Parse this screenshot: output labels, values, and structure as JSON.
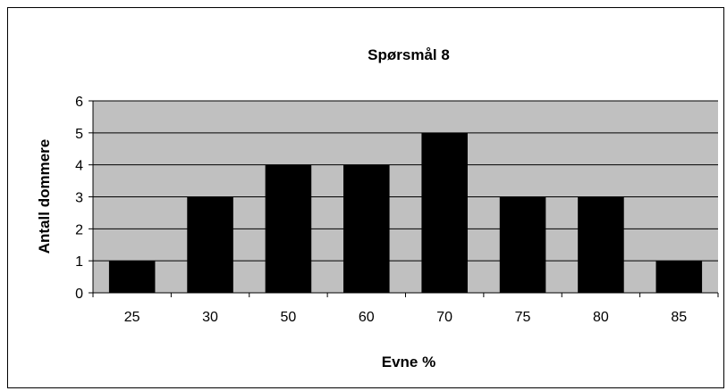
{
  "chart_data": {
    "type": "bar",
    "title": "Spørsmål 8",
    "xlabel": "Evne %",
    "ylabel": "Antall dommere",
    "categories": [
      "25",
      "30",
      "50",
      "60",
      "70",
      "75",
      "80",
      "85"
    ],
    "values": [
      1,
      3,
      4,
      4,
      5,
      3,
      3,
      1
    ],
    "ylim": [
      0,
      6
    ],
    "yticks": [
      "0",
      "1",
      "2",
      "3",
      "4",
      "5",
      "6"
    ],
    "grid": true,
    "legend": "none",
    "colors": {
      "plot_background": "#c0c0c0",
      "bar": "#000000",
      "gridline": "#000000",
      "page_background": "#ffffff"
    }
  }
}
